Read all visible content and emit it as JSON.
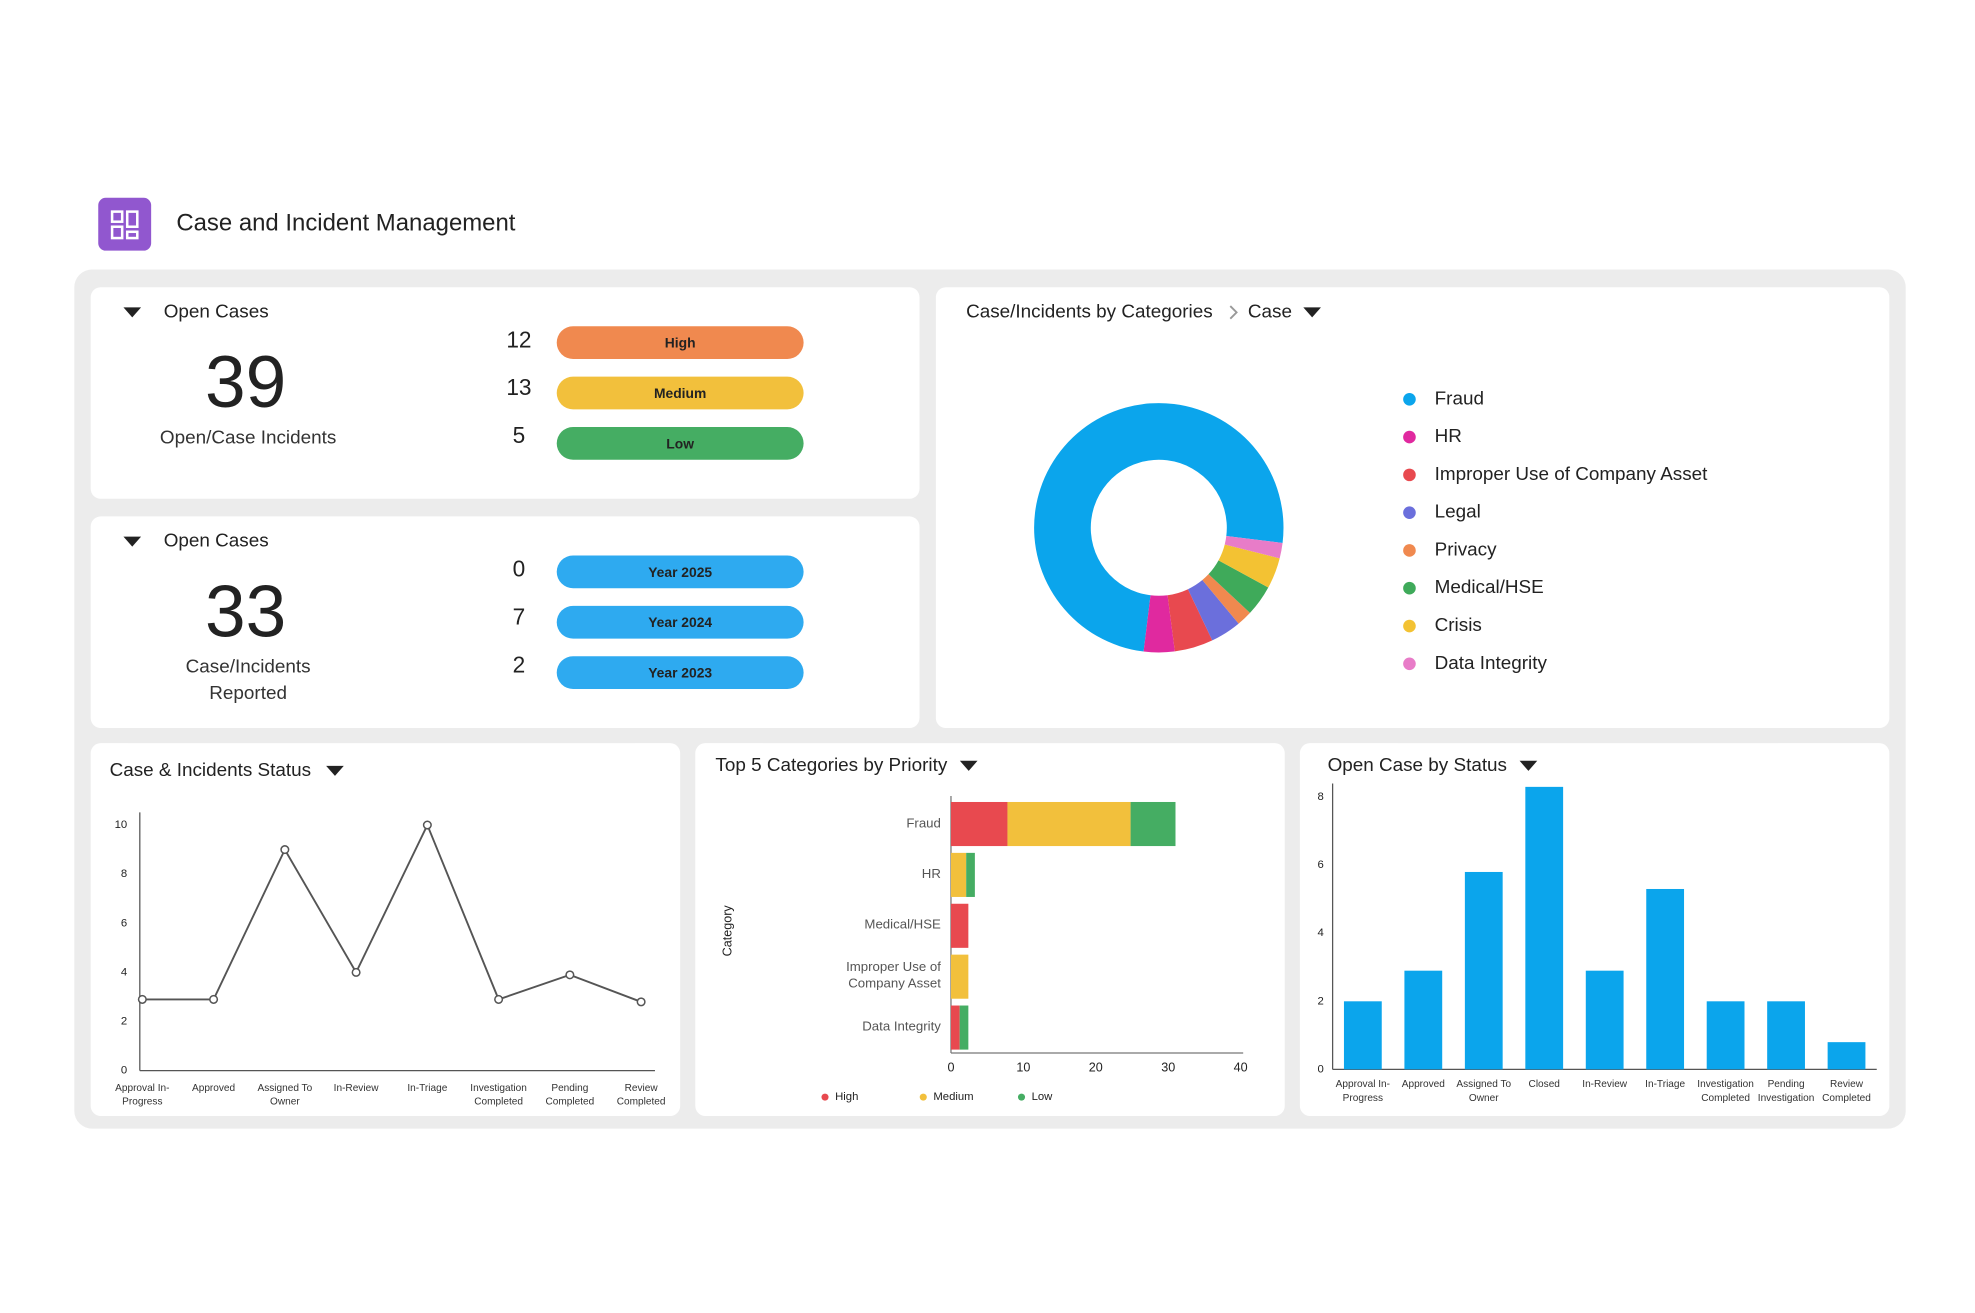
{
  "header": {
    "title": "Case and Incident Management"
  },
  "summary_cards": [
    {
      "title": "Open Cases",
      "total": 39,
      "label": "Open/Case Incidents",
      "rows": [
        {
          "count": 12,
          "label": "High",
          "color": "#f0894f"
        },
        {
          "count": 13,
          "label": "Medium",
          "color": "#f2c03c"
        },
        {
          "count": 5,
          "label": "Low",
          "color": "#45ad63"
        }
      ]
    },
    {
      "title": "Open Cases",
      "total": 33,
      "label": "Case/Incidents Reported",
      "rows": [
        {
          "count": 0,
          "label": "Year 2025",
          "color": "#2eaaf0"
        },
        {
          "count": 7,
          "label": "Year 2024",
          "color": "#2eaaf0"
        },
        {
          "count": 2,
          "label": "Year 2023",
          "color": "#2eaaf0"
        }
      ]
    }
  ],
  "chart_data": [
    {
      "type": "pie",
      "donut": true,
      "title": "Case/Incidents by Categories",
      "breadcrumb": "Case",
      "categories": [
        "Fraud",
        "HR",
        "Improper Use of Company Asset",
        "Legal",
        "Privacy",
        "Medical/HSE",
        "Crisis",
        "Data Integrity"
      ],
      "values": [
        75,
        4,
        5,
        4,
        2,
        4,
        4,
        2
      ],
      "colors": [
        "#0ba5ec",
        "#e0299f",
        "#e8494f",
        "#6b6fdc",
        "#f0894f",
        "#3faa5a",
        "#f3c233",
        "#e87cc8"
      ]
    },
    {
      "type": "line",
      "title": "Case & Incidents Status",
      "categories": [
        "Approval In-Progress",
        "Approved",
        "Assigned To Owner",
        "In-Review",
        "In-Triage",
        "Investigation Completed",
        "Pending Completed",
        "Review Completed"
      ],
      "values": [
        2.9,
        2.9,
        9,
        4,
        10,
        2.9,
        3.9,
        2.8
      ],
      "color": "#555555",
      "ylim": [
        0,
        10
      ],
      "yticks": [
        0,
        2,
        4,
        6,
        8,
        10
      ]
    },
    {
      "type": "bar",
      "orientation": "horizontal",
      "stacked": true,
      "title": "Top 5 Categories by Priority",
      "y_label": "Category",
      "categories": [
        "Fraud",
        "HR",
        "Medical/HSE",
        "Improper Use of Company Asset",
        "Data Integrity"
      ],
      "series": [
        {
          "name": "High",
          "color": "#e8494f",
          "values": [
            7.8,
            0,
            2.4,
            0,
            1.2
          ]
        },
        {
          "name": "Medium",
          "color": "#f2c03c",
          "values": [
            17,
            2.1,
            0,
            2.4,
            0
          ]
        },
        {
          "name": "Low",
          "color": "#45ad63",
          "values": [
            6.2,
            1.2,
            0,
            0,
            1.2
          ]
        }
      ],
      "xlim": [
        0,
        40
      ],
      "xticks": [
        0,
        10,
        20,
        30,
        40
      ]
    },
    {
      "type": "bar",
      "title": "Open Case by Status",
      "categories": [
        "Approval In-Progress",
        "Approved",
        "Assigned To Owner",
        "Closed",
        "In-Review",
        "In-Triage",
        "Investigation Completed",
        "Pending Investigation",
        "Review Completed"
      ],
      "values": [
        2,
        2.9,
        5.8,
        8.3,
        2.9,
        5.3,
        2,
        2,
        0.8
      ],
      "color": "#0ba5ec",
      "ylim": [
        0,
        8.4
      ],
      "yticks": [
        0,
        2,
        4,
        6,
        8
      ]
    }
  ]
}
